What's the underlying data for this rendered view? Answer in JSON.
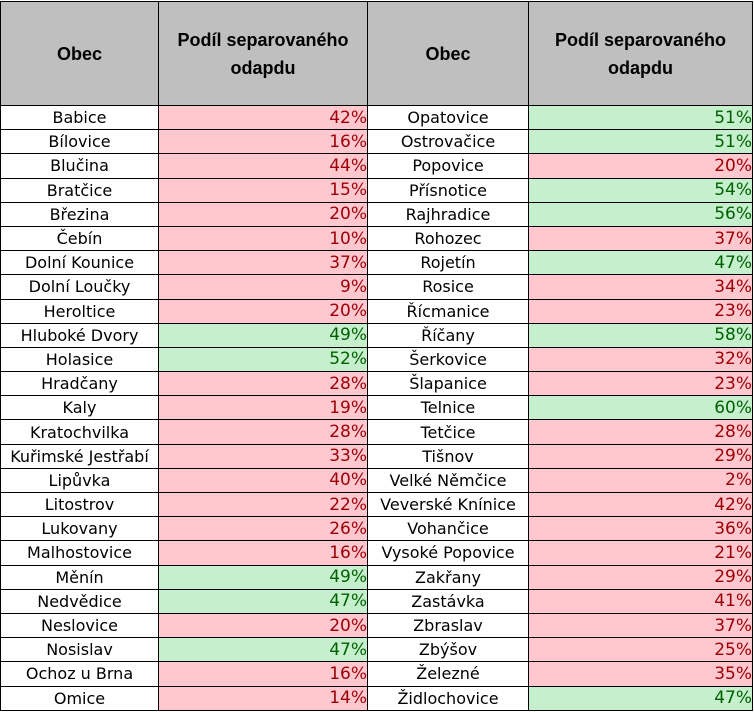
{
  "headers": {
    "obec": "Obec",
    "podil": "Podíl separovaného odapdu"
  },
  "colors": {
    "header_bg": "#bfbfbf",
    "low_bg": "#ffc7ce",
    "low_text": "#9c0006",
    "high_bg": "#c6efce",
    "high_text": "#006100"
  },
  "left_column": [
    {
      "obec": "Babice",
      "podil": "42%",
      "status": "low"
    },
    {
      "obec": "Bílovice",
      "podil": "16%",
      "status": "low"
    },
    {
      "obec": "Blučina",
      "podil": "44%",
      "status": "low"
    },
    {
      "obec": "Bratčice",
      "podil": "15%",
      "status": "low"
    },
    {
      "obec": "Březina",
      "podil": "20%",
      "status": "low"
    },
    {
      "obec": "Čebín",
      "podil": "10%",
      "status": "low"
    },
    {
      "obec": "Dolní Kounice",
      "podil": "37%",
      "status": "low"
    },
    {
      "obec": "Dolní Loučky",
      "podil": "9%",
      "status": "low"
    },
    {
      "obec": "Heroltice",
      "podil": "20%",
      "status": "low"
    },
    {
      "obec": "Hluboké Dvory",
      "podil": "49%",
      "status": "high"
    },
    {
      "obec": "Holasice",
      "podil": "52%",
      "status": "high"
    },
    {
      "obec": "Hradčany",
      "podil": "28%",
      "status": "low"
    },
    {
      "obec": "Kaly",
      "podil": "19%",
      "status": "low"
    },
    {
      "obec": "Kratochvilka",
      "podil": "28%",
      "status": "low"
    },
    {
      "obec": "Kuřimské Jestřabí",
      "podil": "33%",
      "status": "low"
    },
    {
      "obec": "Lipůvka",
      "podil": "40%",
      "status": "low"
    },
    {
      "obec": "Litostrov",
      "podil": "22%",
      "status": "low"
    },
    {
      "obec": "Lukovany",
      "podil": "26%",
      "status": "low"
    },
    {
      "obec": "Malhostovice",
      "podil": "16%",
      "status": "low"
    },
    {
      "obec": "Měnín",
      "podil": "49%",
      "status": "high"
    },
    {
      "obec": "Nedvědice",
      "podil": "47%",
      "status": "high"
    },
    {
      "obec": "Neslovice",
      "podil": "20%",
      "status": "low"
    },
    {
      "obec": "Nosislav",
      "podil": "47%",
      "status": "high"
    },
    {
      "obec": "Ochoz u Brna",
      "podil": "16%",
      "status": "low"
    },
    {
      "obec": "Omice",
      "podil": "14%",
      "status": "low"
    }
  ],
  "right_column": [
    {
      "obec": "Opatovice",
      "podil": "51%",
      "status": "high"
    },
    {
      "obec": "Ostrovačice",
      "podil": "51%",
      "status": "high"
    },
    {
      "obec": "Popovice",
      "podil": "20%",
      "status": "low"
    },
    {
      "obec": "Přísnotice",
      "podil": "54%",
      "status": "high"
    },
    {
      "obec": "Rajhradice",
      "podil": "56%",
      "status": "high"
    },
    {
      "obec": "Rohozec",
      "podil": "37%",
      "status": "low"
    },
    {
      "obec": "Rojetín",
      "podil": "47%",
      "status": "high"
    },
    {
      "obec": "Rosice",
      "podil": "34%",
      "status": "low"
    },
    {
      "obec": "Řícmanice",
      "podil": "23%",
      "status": "low"
    },
    {
      "obec": "Říčany",
      "podil": "58%",
      "status": "high"
    },
    {
      "obec": "Šerkovice",
      "podil": "32%",
      "status": "low"
    },
    {
      "obec": "Šlapanice",
      "podil": "23%",
      "status": "low"
    },
    {
      "obec": "Telnice",
      "podil": "60%",
      "status": "high"
    },
    {
      "obec": "Tetčice",
      "podil": "28%",
      "status": "low"
    },
    {
      "obec": "Tišnov",
      "podil": "29%",
      "status": "low"
    },
    {
      "obec": "Velké Němčice",
      "podil": "2%",
      "status": "low"
    },
    {
      "obec": "Veverské Knínice",
      "podil": "42%",
      "status": "low"
    },
    {
      "obec": "Vohančice",
      "podil": "36%",
      "status": "low"
    },
    {
      "obec": "Vysoké Popovice",
      "podil": "21%",
      "status": "low"
    },
    {
      "obec": "Zakřany",
      "podil": "29%",
      "status": "low"
    },
    {
      "obec": "Zastávka",
      "podil": "41%",
      "status": "low"
    },
    {
      "obec": "Zbraslav",
      "podil": "37%",
      "status": "low"
    },
    {
      "obec": "Zbýšov",
      "podil": "25%",
      "status": "low"
    },
    {
      "obec": "Železné",
      "podil": "35%",
      "status": "low"
    },
    {
      "obec": "Židlochovice",
      "podil": "47%",
      "status": "high"
    }
  ]
}
